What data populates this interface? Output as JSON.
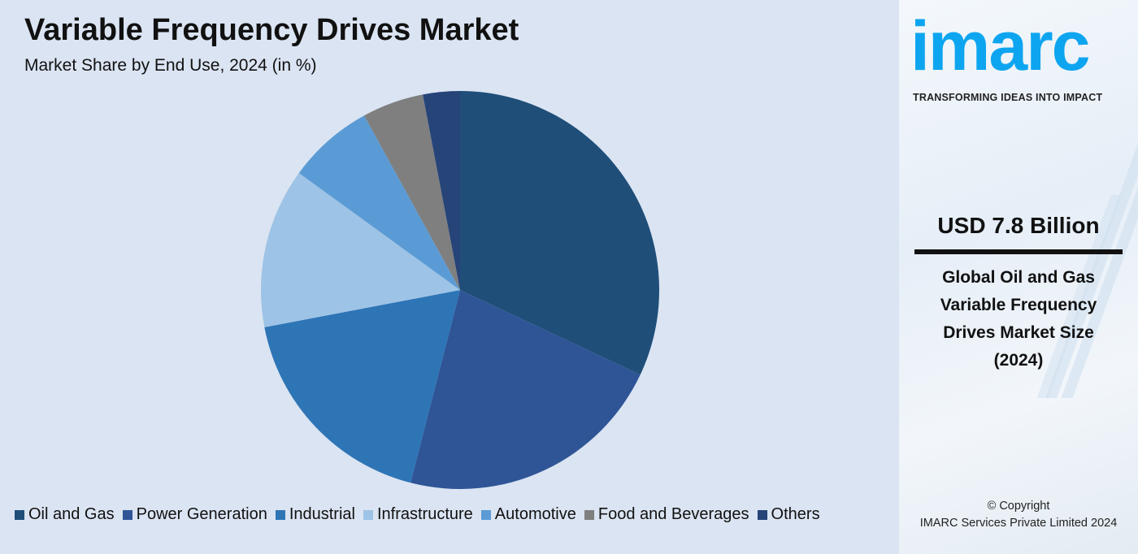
{
  "chart_data": {
    "type": "pie",
    "title": "Variable Frequency Drives Market",
    "subtitle": "Market Share by End Use, 2024 (in %)",
    "categories": [
      "Oil and Gas",
      "Power Generation",
      "Industrial",
      "Infrastructure",
      "Automotive",
      "Food and Beverages",
      "Others"
    ],
    "values": [
      32,
      22,
      18,
      13,
      7,
      5,
      3
    ],
    "colors": [
      "#1f4e79",
      "#2f5597",
      "#2e75b6",
      "#9dc3e6",
      "#5b9bd5",
      "#7f7f7f",
      "#264478"
    ],
    "start_angle": "12 o'clock, clockwise",
    "legend": "bottom"
  },
  "side": {
    "logo": "imarc",
    "tagline": "TRANSFORMING IDEAS INTO IMPACT",
    "value": "USD 7.8 Billion",
    "description": [
      "Global Oil and Gas",
      "Variable Frequency",
      "Drives Market Size",
      "(2024)"
    ],
    "copyright": [
      "© Copyright",
      "IMARC Services Private Limited 2024"
    ]
  }
}
